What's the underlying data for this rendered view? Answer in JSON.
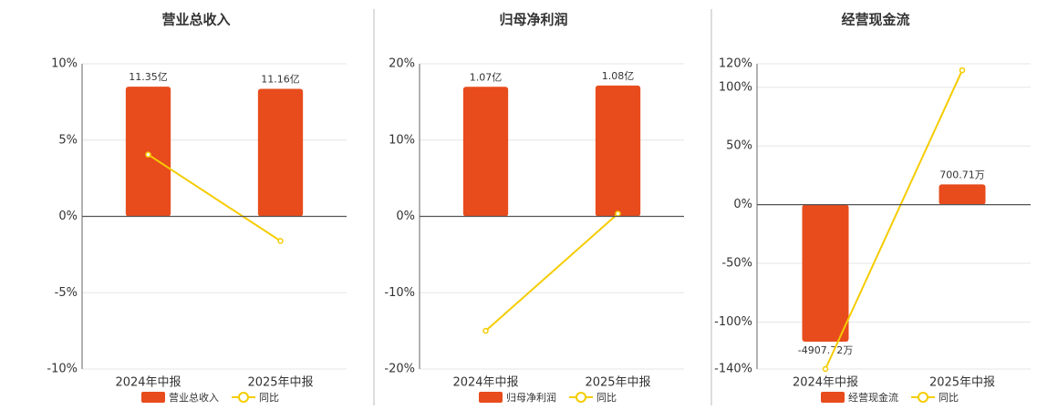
{
  "chart_data": [
    {
      "type": "bar",
      "title": "营业总收入",
      "categories": [
        "2024年中报",
        "2025年中报"
      ],
      "series": [
        {
          "name": "营业总收入",
          "color": "#e84c1c",
          "axis": "y2",
          "values": [
            11.35,
            11.16
          ],
          "value_labels": [
            "11.35亿",
            "11.16亿"
          ]
        },
        {
          "name": "同比",
          "type": "line",
          "color": "#f5cc00",
          "values": [
            4.05,
            -1.61
          ]
        }
      ],
      "ylim": [
        -10,
        10
      ],
      "yticks": [
        {
          "value": 10,
          "label": "10%"
        },
        {
          "value": 5,
          "label": "5%"
        },
        {
          "value": 0,
          "label": "0%"
        },
        {
          "value": -5,
          "label": "-5%"
        },
        {
          "value": -10,
          "label": "-10%"
        }
      ],
      "y2lim": [
        -13.35,
        13.35
      ],
      "grid": true
    },
    {
      "type": "bar",
      "title": "归母净利润",
      "categories": [
        "2024年中报",
        "2025年中报"
      ],
      "series": [
        {
          "name": "归母净利润",
          "color": "#e84c1c",
          "axis": "y2",
          "values": [
            1.07,
            1.08
          ],
          "value_labels": [
            "1.07亿",
            "1.08亿"
          ]
        },
        {
          "name": "同比",
          "type": "line",
          "color": "#f5cc00",
          "values": [
            -15.0,
            0.36
          ]
        }
      ],
      "ylim": [
        -20,
        20
      ],
      "yticks": [
        {
          "value": 20,
          "label": "20%"
        },
        {
          "value": 10,
          "label": "10%"
        },
        {
          "value": 0,
          "label": "0%"
        },
        {
          "value": -10,
          "label": "-10%"
        },
        {
          "value": -20,
          "label": "-20%"
        }
      ],
      "y2lim": [
        -1.26,
        1.26
      ],
      "grid": true
    },
    {
      "type": "bar",
      "title": "经营现金流",
      "categories": [
        "2024年中报",
        "2025年中报"
      ],
      "series": [
        {
          "name": "经营现金流",
          "color": "#e84c1c",
          "axis": "y2",
          "values": [
            -4907.72,
            700.71
          ],
          "value_labels": [
            "-4907.72万",
            "700.71万"
          ]
        },
        {
          "name": "同比",
          "type": "line",
          "color": "#f5cc00",
          "values": [
            -140,
            114.5
          ]
        }
      ],
      "ylim": [
        -140,
        120
      ],
      "yticks": [
        {
          "value": 120,
          "label": "120%"
        },
        {
          "value": 100,
          "label": "100%"
        },
        {
          "value": 50,
          "label": "50%"
        },
        {
          "value": 0,
          "label": "0%"
        },
        {
          "value": -50,
          "label": "-50%"
        },
        {
          "value": -100,
          "label": "-100%"
        },
        {
          "value": -140,
          "label": "-140%"
        }
      ],
      "y2lim": [
        -5883,
        5005
      ],
      "grid": true
    }
  ]
}
